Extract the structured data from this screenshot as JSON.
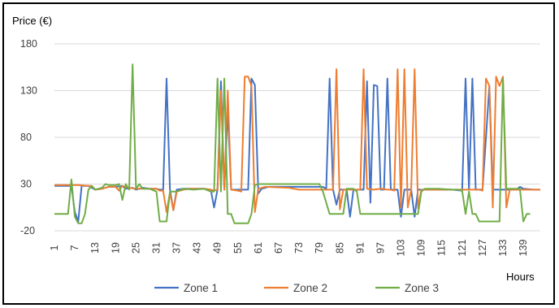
{
  "chart_data": {
    "type": "line",
    "title": "",
    "ylabel": "Price (€)",
    "xlabel": "Hours",
    "ylim": [
      -20,
      180
    ],
    "yticks": [
      -20,
      30,
      80,
      130,
      180
    ],
    "xlim": [
      1,
      144
    ],
    "xticks": [
      1,
      7,
      13,
      19,
      25,
      31,
      37,
      43,
      49,
      55,
      61,
      67,
      73,
      79,
      85,
      91,
      97,
      103,
      109,
      115,
      121,
      127,
      133,
      139
    ],
    "grid": "horizontal",
    "legend_position": "bottom",
    "series": [
      {
        "name": "Zone 1",
        "color": "#4472C4",
        "points": [
          [
            1,
            28
          ],
          [
            6,
            28
          ],
          [
            7,
            0
          ],
          [
            8,
            -10
          ],
          [
            9,
            28
          ],
          [
            11,
            28
          ],
          [
            13,
            24
          ],
          [
            15,
            25
          ],
          [
            17,
            27
          ],
          [
            19,
            27
          ],
          [
            21,
            28
          ],
          [
            22,
            25
          ],
          [
            24,
            26
          ],
          [
            25,
            24
          ],
          [
            27,
            26
          ],
          [
            29,
            25
          ],
          [
            31,
            25
          ],
          [
            32,
            24
          ],
          [
            33,
            24
          ],
          [
            34,
            143
          ],
          [
            35,
            24
          ],
          [
            36,
            2
          ],
          [
            37,
            24
          ],
          [
            39,
            25
          ],
          [
            41,
            25
          ],
          [
            45,
            25
          ],
          [
            47,
            24
          ],
          [
            48,
            5
          ],
          [
            49,
            24
          ],
          [
            50,
            140
          ],
          [
            51,
            24
          ],
          [
            52,
            110
          ],
          [
            53,
            24
          ],
          [
            58,
            24
          ],
          [
            59,
            143
          ],
          [
            60,
            136
          ],
          [
            61,
            20
          ],
          [
            62,
            25
          ],
          [
            64,
            27
          ],
          [
            70,
            27
          ],
          [
            80,
            27
          ],
          [
            81,
            25
          ],
          [
            82,
            143
          ],
          [
            83,
            24
          ],
          [
            84,
            8
          ],
          [
            85,
            24
          ],
          [
            87,
            24
          ],
          [
            88,
            -5
          ],
          [
            89,
            24
          ],
          [
            92,
            24
          ],
          [
            93,
            140
          ],
          [
            94,
            10
          ],
          [
            95,
            136
          ],
          [
            96,
            135
          ],
          [
            97,
            24
          ],
          [
            98,
            24
          ],
          [
            99,
            143
          ],
          [
            100,
            24
          ],
          [
            102,
            24
          ],
          [
            103,
            -5
          ],
          [
            104,
            24
          ],
          [
            106,
            24
          ],
          [
            107,
            -5
          ],
          [
            108,
            24
          ],
          [
            118,
            24
          ],
          [
            121,
            23
          ],
          [
            122,
            143
          ],
          [
            123,
            24
          ],
          [
            124,
            143
          ],
          [
            125,
            24
          ],
          [
            127,
            24
          ],
          [
            129,
            135
          ],
          [
            130,
            24
          ],
          [
            133,
            24
          ],
          [
            136,
            24
          ],
          [
            137,
            24
          ],
          [
            138,
            27
          ],
          [
            139,
            25
          ],
          [
            142,
            24
          ],
          [
            144,
            24
          ]
        ]
      },
      {
        "name": "Zone 2",
        "color": "#ED7D31",
        "points": [
          [
            1,
            29
          ],
          [
            8,
            29
          ],
          [
            11,
            28
          ],
          [
            12,
            28
          ],
          [
            13,
            24
          ],
          [
            15,
            25
          ],
          [
            17,
            27
          ],
          [
            19,
            27
          ],
          [
            20,
            23
          ],
          [
            21,
            28
          ],
          [
            23,
            26
          ],
          [
            25,
            25
          ],
          [
            26,
            25
          ],
          [
            27,
            25
          ],
          [
            31,
            25
          ],
          [
            32,
            23
          ],
          [
            33,
            23
          ],
          [
            34,
            0
          ],
          [
            35,
            21
          ],
          [
            36,
            2
          ],
          [
            37,
            22
          ],
          [
            39,
            24
          ],
          [
            41,
            25
          ],
          [
            45,
            25
          ],
          [
            47,
            24
          ],
          [
            48,
            23
          ],
          [
            49,
            24
          ],
          [
            50,
            130
          ],
          [
            51,
            24
          ],
          [
            52,
            130
          ],
          [
            53,
            24
          ],
          [
            55,
            23
          ],
          [
            56,
            22
          ],
          [
            57,
            145
          ],
          [
            58,
            145
          ],
          [
            59,
            135
          ],
          [
            60,
            0
          ],
          [
            61,
            25
          ],
          [
            63,
            27
          ],
          [
            70,
            26
          ],
          [
            73,
            24
          ],
          [
            80,
            24
          ],
          [
            82,
            24
          ],
          [
            83,
            24
          ],
          [
            84,
            153
          ],
          [
            85,
            3
          ],
          [
            86,
            24
          ],
          [
            89,
            24
          ],
          [
            91,
            24
          ],
          [
            92,
            153
          ],
          [
            93,
            25
          ],
          [
            95,
            24
          ],
          [
            97,
            25
          ],
          [
            99,
            24
          ],
          [
            100,
            24
          ],
          [
            101,
            23
          ],
          [
            102,
            153
          ],
          [
            103,
            5
          ],
          [
            104,
            153
          ],
          [
            105,
            5
          ],
          [
            106,
            24
          ],
          [
            107,
            153
          ],
          [
            108,
            4
          ],
          [
            109,
            24
          ],
          [
            118,
            24
          ],
          [
            121,
            24
          ],
          [
            126,
            24
          ],
          [
            127,
            23
          ],
          [
            128,
            143
          ],
          [
            129,
            135
          ],
          [
            130,
            5
          ],
          [
            131,
            145
          ],
          [
            132,
            135
          ],
          [
            133,
            145
          ],
          [
            134,
            5
          ],
          [
            135,
            24
          ],
          [
            136,
            24
          ],
          [
            144,
            24
          ]
        ]
      },
      {
        "name": "Zone 3",
        "color": "#70AD47",
        "points": [
          [
            1,
            -2
          ],
          [
            5,
            -2
          ],
          [
            6,
            35
          ],
          [
            7,
            -5
          ],
          [
            8,
            -12
          ],
          [
            9,
            -12
          ],
          [
            10,
            -2
          ],
          [
            11,
            24
          ],
          [
            12,
            28
          ],
          [
            13,
            24
          ],
          [
            15,
            26
          ],
          [
            16,
            30
          ],
          [
            17,
            29
          ],
          [
            19,
            29
          ],
          [
            20,
            30
          ],
          [
            21,
            13
          ],
          [
            22,
            30
          ],
          [
            23,
            24
          ],
          [
            24,
            158
          ],
          [
            25,
            25
          ],
          [
            26,
            30
          ],
          [
            27,
            25
          ],
          [
            29,
            25
          ],
          [
            31,
            22
          ],
          [
            32,
            -10
          ],
          [
            33,
            -10
          ],
          [
            34,
            -10
          ],
          [
            35,
            22
          ],
          [
            36,
            22
          ],
          [
            37,
            22
          ],
          [
            39,
            25
          ],
          [
            42,
            24
          ],
          [
            45,
            25
          ],
          [
            47,
            22
          ],
          [
            48,
            22
          ],
          [
            49,
            143
          ],
          [
            50,
            22
          ],
          [
            51,
            143
          ],
          [
            52,
            -2
          ],
          [
            53,
            -2
          ],
          [
            54,
            -12
          ],
          [
            57,
            -12
          ],
          [
            58,
            -12
          ],
          [
            59,
            -2
          ],
          [
            60,
            29
          ],
          [
            61,
            30
          ],
          [
            63,
            30
          ],
          [
            69,
            30
          ],
          [
            79,
            30
          ],
          [
            80,
            22
          ],
          [
            82,
            -2
          ],
          [
            86,
            -2
          ],
          [
            87,
            25
          ],
          [
            89,
            25
          ],
          [
            90,
            22
          ],
          [
            91,
            -2
          ],
          [
            92,
            -2
          ],
          [
            93,
            -2
          ],
          [
            94,
            -2
          ],
          [
            95,
            -2
          ],
          [
            96,
            -2
          ],
          [
            97,
            -2
          ],
          [
            99,
            -2
          ],
          [
            104,
            -2
          ],
          [
            106,
            -2
          ],
          [
            108,
            -2
          ],
          [
            109,
            22
          ],
          [
            110,
            25
          ],
          [
            114,
            25
          ],
          [
            118,
            24
          ],
          [
            120,
            24
          ],
          [
            121,
            23
          ],
          [
            122,
            -2
          ],
          [
            123,
            22
          ],
          [
            124,
            -2
          ],
          [
            125,
            -2
          ],
          [
            126,
            -10
          ],
          [
            127,
            -10
          ],
          [
            131,
            -10
          ],
          [
            132,
            -10
          ],
          [
            133,
            143
          ],
          [
            134,
            25
          ],
          [
            137,
            25
          ],
          [
            138,
            25
          ],
          [
            139,
            -10
          ],
          [
            140,
            -2
          ],
          [
            141,
            -2
          ]
        ]
      }
    ]
  }
}
